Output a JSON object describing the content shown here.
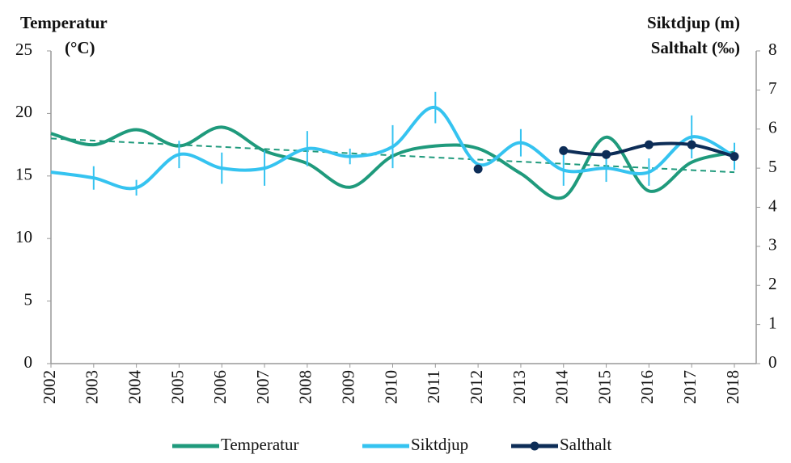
{
  "chart_data": {
    "type": "line",
    "ylabel": [
      "Temperatur",
      "(°C)"
    ],
    "y2label": [
      "Siktdjup (m)",
      "Salthalt (‰)"
    ],
    "categories": [
      "2002",
      "2003",
      "2004",
      "2005",
      "2006",
      "2007",
      "2008",
      "2009",
      "2010",
      "2011",
      "2012",
      "2013",
      "2014",
      "2015",
      "2016",
      "2017",
      "2018"
    ],
    "series": [
      {
        "name": "Temperatur",
        "color": "#1f9a7c",
        "axis": "y",
        "values": [
          18.4,
          17.5,
          18.7,
          17.4,
          18.9,
          17.0,
          16.0,
          14.1,
          16.6,
          17.4,
          17.2,
          15.2,
          13.3,
          18.1,
          13.8,
          16.1,
          16.9
        ],
        "trend": [
          18.0,
          15.3
        ]
      },
      {
        "name": "Siktdjup",
        "color": "#35c3f0",
        "axis": "y2",
        "values": [
          4.9,
          4.75,
          4.5,
          5.35,
          5.0,
          5.0,
          5.5,
          5.3,
          5.55,
          6.55,
          5.1,
          5.65,
          4.95,
          5.0,
          4.9,
          5.8,
          5.3
        ],
        "errors": [
          null,
          0.3,
          0.2,
          0.35,
          0.4,
          0.45,
          0.45,
          0.2,
          0.55,
          0.4,
          null,
          0.35,
          0.4,
          0.35,
          0.35,
          0.55,
          0.35
        ]
      },
      {
        "name": "Salthalt",
        "color": "#0d2d57",
        "axis": "y2",
        "markers": true,
        "values": [
          null,
          null,
          null,
          null,
          null,
          null,
          null,
          null,
          null,
          null,
          4.98,
          null,
          5.45,
          5.35,
          5.6,
          5.6,
          5.3
        ]
      }
    ],
    "ylim": [
      0,
      25
    ],
    "yticks": [
      0,
      5,
      10,
      15,
      20,
      25
    ],
    "y2lim": [
      0,
      8
    ],
    "y2ticks": [
      0,
      1,
      2,
      3,
      4,
      5,
      6,
      7,
      8
    ]
  }
}
